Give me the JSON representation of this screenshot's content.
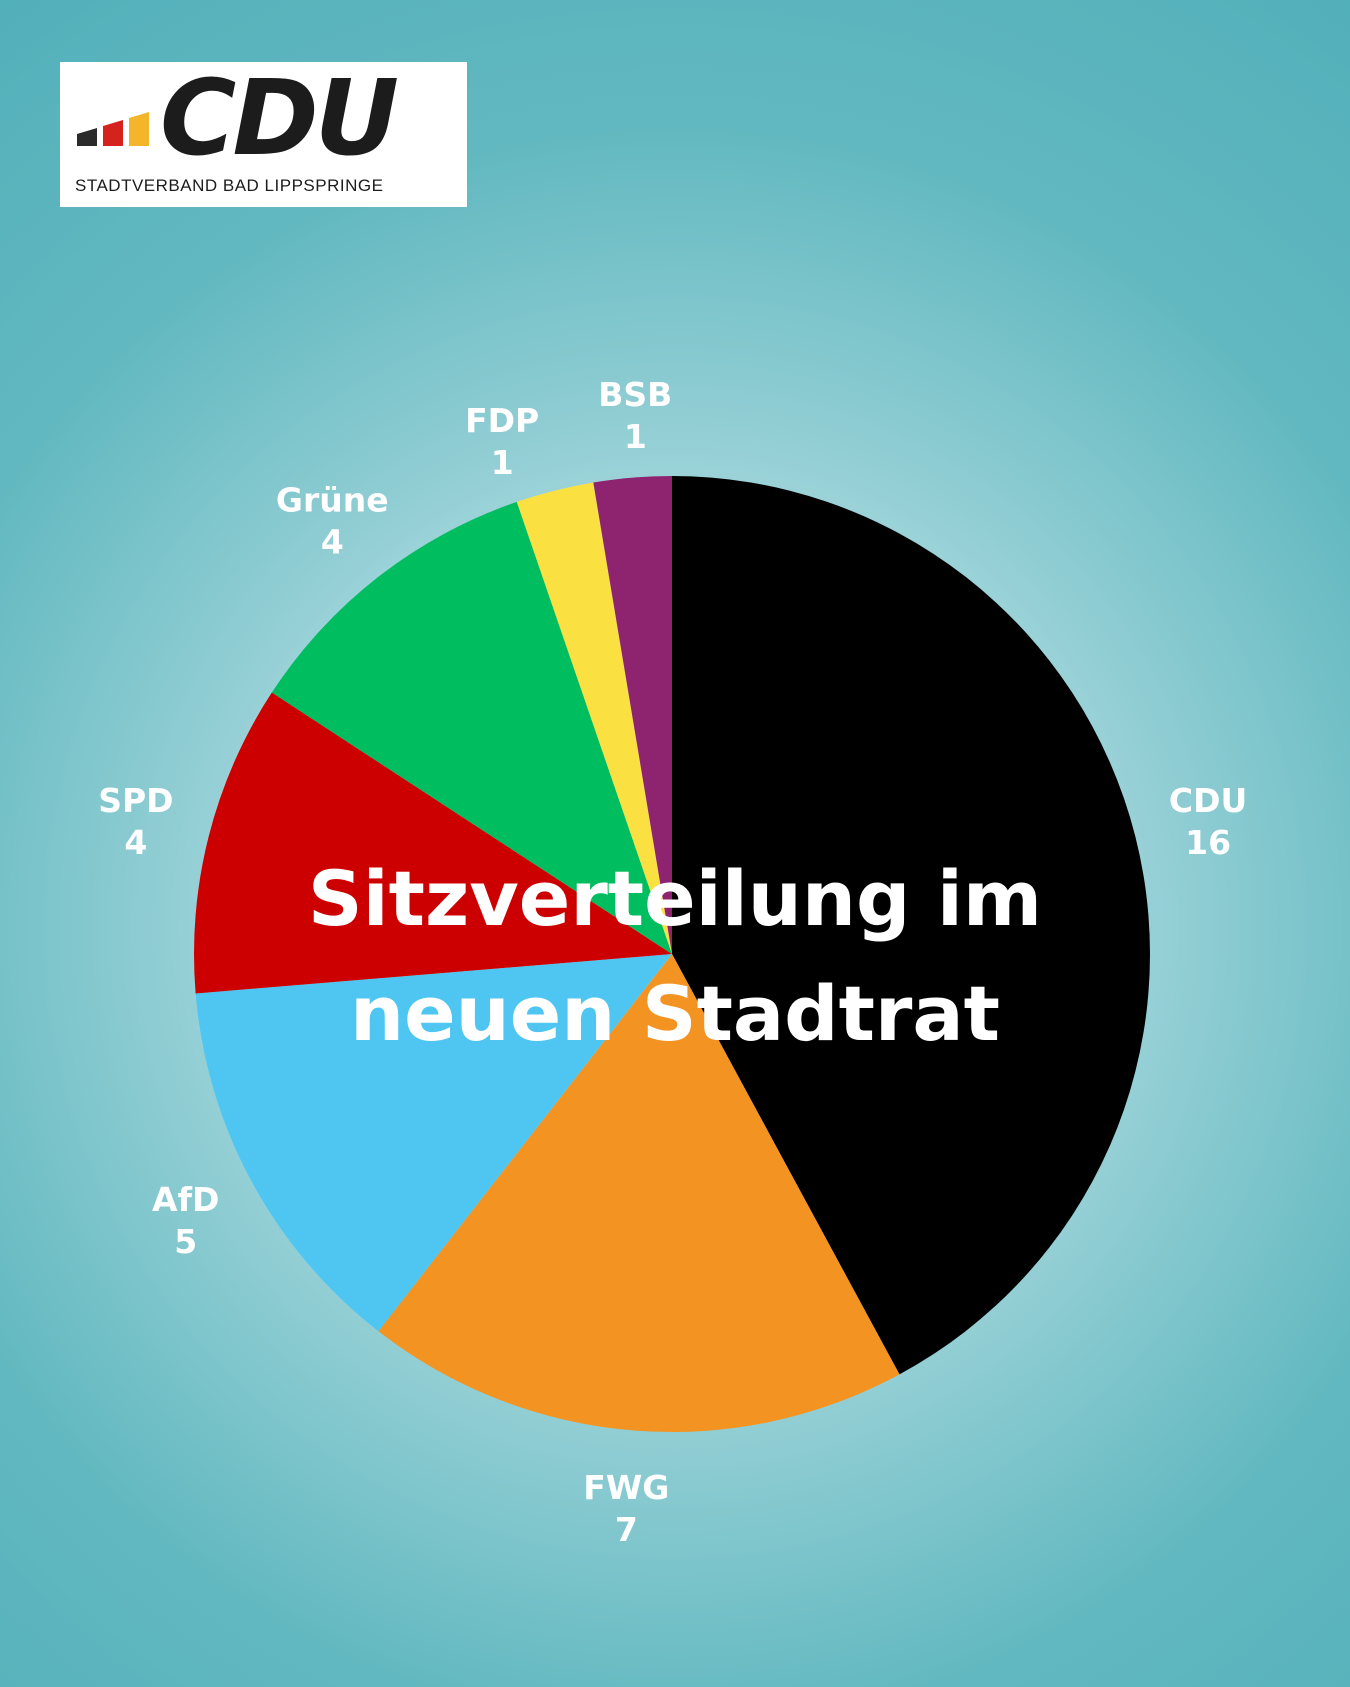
{
  "logo": {
    "wordmark": "CDU",
    "subtitle": "STADTVERBAND BAD LIPPSPRINGE",
    "bar_colors": [
      "#2b2b2b",
      "#d6221c",
      "#f3b62a"
    ]
  },
  "chart_data": {
    "type": "pie",
    "title_lines": [
      "Sitzverteilung im",
      "neuen Stadtrat"
    ],
    "start": "12 o'clock",
    "direction": "clockwise",
    "slices": [
      {
        "label": "CDU",
        "value": 16,
        "color": "#000000"
      },
      {
        "label": "FWG",
        "value": 7,
        "color": "#f39322"
      },
      {
        "label": "AfD",
        "value": 5,
        "color": "#4fc6f2"
      },
      {
        "label": "SPD",
        "value": 4,
        "color": "#cc0000"
      },
      {
        "label": "Grüne",
        "value": 4,
        "color": "#00bd60"
      },
      {
        "label": "FDP",
        "value": 1,
        "color": "#fbe042"
      },
      {
        "label": "BSB",
        "value": 1,
        "color": "#8e2370"
      }
    ]
  }
}
